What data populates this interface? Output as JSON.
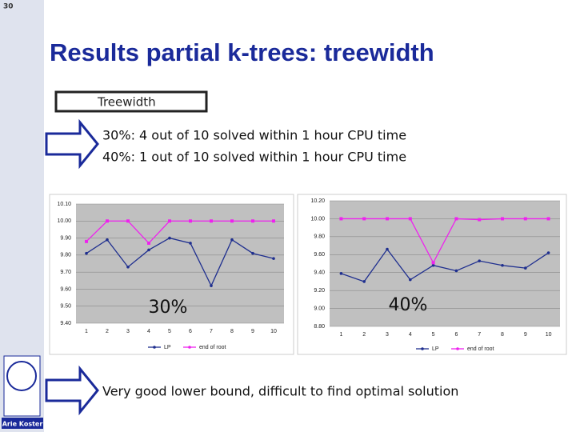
{
  "page_number": "30",
  "title": "Results partial k-trees: treewidth",
  "box_label": "Treewidth",
  "lines": [
    "30%: 4 out of 10 solved within 1 hour CPU time",
    "40%: 1 out of 10 solved within 1 hour CPU time"
  ],
  "conclusion": "Very good lower bound, difficult to find optimal solution",
  "author": "Arie Koster",
  "chart_data": [
    {
      "type": "line",
      "annotation": "30%",
      "categories": [
        "1",
        "2",
        "3",
        "4",
        "5",
        "6",
        "7",
        "8",
        "9",
        "10"
      ],
      "series": [
        {
          "name": "LP",
          "color": "#1f2f8f",
          "values": [
            9.81,
            9.89,
            9.73,
            9.83,
            9.9,
            9.87,
            9.62,
            9.89,
            9.81,
            9.78
          ]
        },
        {
          "name": "end of root",
          "color": "#ee22ee",
          "values": [
            9.88,
            10,
            10,
            9.87,
            10,
            10,
            10,
            10,
            10,
            10
          ]
        }
      ],
      "ylim": [
        9.4,
        10.1
      ],
      "yticks": [
        {
          "value": 9.4,
          "label": "9.40"
        },
        {
          "value": 9.5,
          "label": "9.50"
        },
        {
          "value": 9.6,
          "label": "9.60"
        },
        {
          "value": 9.7,
          "label": "9.70"
        },
        {
          "value": 9.8,
          "label": "9.80"
        },
        {
          "value": 9.9,
          "label": "9.90"
        },
        {
          "value": 10,
          "label": "10.00"
        },
        {
          "value": 10.1,
          "label": "10.10"
        }
      ],
      "grid": true
    },
    {
      "type": "line",
      "annotation": "40%",
      "categories": [
        "1",
        "2",
        "3",
        "4",
        "5",
        "6",
        "7",
        "8",
        "9",
        "10"
      ],
      "series": [
        {
          "name": "LP",
          "color": "#1f2f8f",
          "values": [
            9.39,
            9.3,
            9.66,
            9.32,
            9.48,
            9.42,
            9.53,
            9.48,
            9.45,
            9.62
          ]
        },
        {
          "name": "end of root",
          "color": "#ee22ee",
          "values": [
            10,
            10,
            10,
            10,
            9.51,
            10,
            9.99,
            10,
            10,
            10
          ]
        }
      ],
      "ylim": [
        8.8,
        10.2
      ],
      "yticks": [
        {
          "value": 8.8,
          "label": "8.80"
        },
        {
          "value": 9,
          "label": "9.00"
        },
        {
          "value": 9.2,
          "label": "9.20"
        },
        {
          "value": 9.4,
          "label": "9.40"
        },
        {
          "value": 9.6,
          "label": "9.60"
        },
        {
          "value": 9.8,
          "label": "9.80"
        },
        {
          "value": 10,
          "label": "10.00"
        },
        {
          "value": 10.2,
          "label": "10.20"
        }
      ],
      "grid": true
    }
  ]
}
